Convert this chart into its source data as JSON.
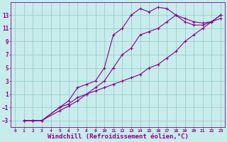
{
  "background_color": "#c8ecec",
  "line_color": "#880088",
  "grid_color": "#99cccc",
  "xlabel": "Windchill (Refroidissement éolien,°C)",
  "xlabel_fontsize": 6.5,
  "tick_fontsize": 5.5,
  "xlim": [
    -0.5,
    23.5
  ],
  "ylim": [
    -4,
    15
  ],
  "yticks": [
    -3,
    -1,
    1,
    3,
    5,
    7,
    9,
    11,
    13
  ],
  "xticks": [
    0,
    1,
    2,
    3,
    4,
    5,
    6,
    7,
    8,
    9,
    10,
    11,
    12,
    13,
    14,
    15,
    16,
    17,
    18,
    19,
    20,
    21,
    22,
    23
  ],
  "lines": [
    {
      "x": [
        1,
        2,
        3,
        5,
        6,
        7,
        8,
        9,
        10,
        11,
        12,
        13,
        14,
        15,
        16,
        17,
        18,
        19,
        20,
        21,
        22,
        23
      ],
      "y": [
        -3,
        -3,
        -3,
        -1,
        0,
        2,
        2.5,
        3,
        5,
        10,
        11,
        13,
        14,
        13.5,
        14.2,
        14,
        13,
        12.5,
        12,
        11.8,
        12,
        13
      ]
    },
    {
      "x": [
        1,
        2,
        3,
        5,
        6,
        7,
        8,
        9,
        10,
        11,
        12,
        13,
        14,
        15,
        16,
        17,
        18,
        19,
        20,
        21,
        22,
        23
      ],
      "y": [
        -3,
        -3,
        -3,
        -1,
        -0.5,
        0.5,
        1,
        2,
        3,
        5,
        7,
        8,
        10,
        10.5,
        11,
        12,
        13,
        12,
        11.5,
        11.5,
        12,
        12.5
      ]
    },
    {
      "x": [
        1,
        2,
        3,
        5,
        6,
        7,
        8,
        9,
        10,
        11,
        12,
        13,
        14,
        15,
        16,
        17,
        18,
        19,
        20,
        21,
        22,
        23
      ],
      "y": [
        -3,
        -3,
        -3,
        -1.5,
        -0.8,
        0,
        1,
        1.5,
        2,
        2.5,
        3,
        3.5,
        4,
        5,
        5.5,
        6.5,
        7.5,
        9,
        10,
        11,
        12,
        13
      ]
    }
  ]
}
